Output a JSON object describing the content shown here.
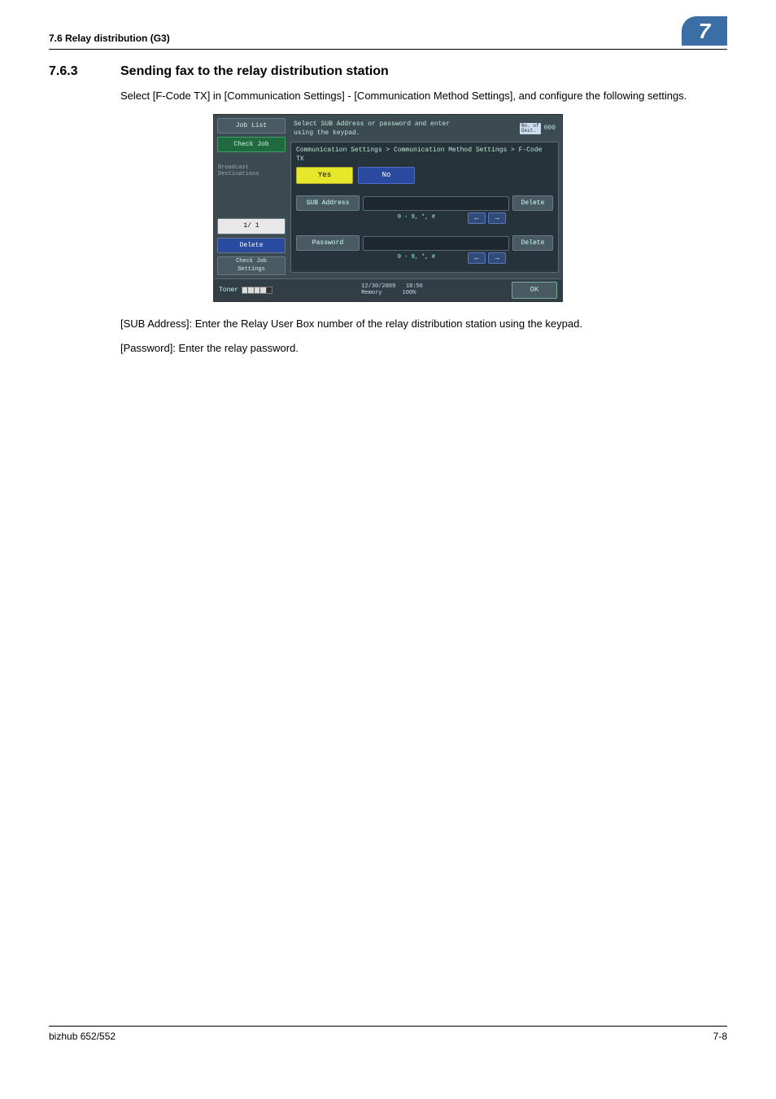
{
  "header": {
    "section_ref": "7.6      Relay distribution (G3)",
    "page_badge": "7"
  },
  "heading": {
    "num": "7.6.3",
    "text": "Sending fax to the relay distribution station"
  },
  "intro": "Select [F-Code TX] in [Communication Settings] - [Communication Method Settings], and configure the following settings.",
  "screenshot": {
    "left": {
      "job_list": "Job List",
      "check_job": "Check Job",
      "broadcast": "Broadcast\nDestinations",
      "page": "1/   1",
      "delete": "Delete",
      "check_settings": "Check Job\nSettings"
    },
    "instr": "Select SUB Address or password and enter\nusing the keypad.",
    "dest_count_label": "No. of\nDest.",
    "dest_count": "000",
    "breadcrumb": "Communication Settings > Communication Method Settings > F-Code TX",
    "yes": "Yes",
    "no": "No",
    "sub_address": "SUB Address",
    "password": "Password",
    "delete": "Delete",
    "chars": "0 - 9, *, #",
    "toner": "Toner",
    "date": "12/30/2009",
    "time": "18:56",
    "memory_label": "Memory",
    "memory_val": "100%",
    "ok": "OK"
  },
  "para1": "[SUB Address]: Enter the Relay User Box number of the relay distribution station using the keypad.",
  "para2": "[Password]: Enter the relay password.",
  "footer": {
    "left": "bizhub 652/552",
    "right": "7-8"
  },
  "colors": {
    "badge_bg": "#3a6ea5",
    "screenshot_bg": "#3c4a52"
  }
}
